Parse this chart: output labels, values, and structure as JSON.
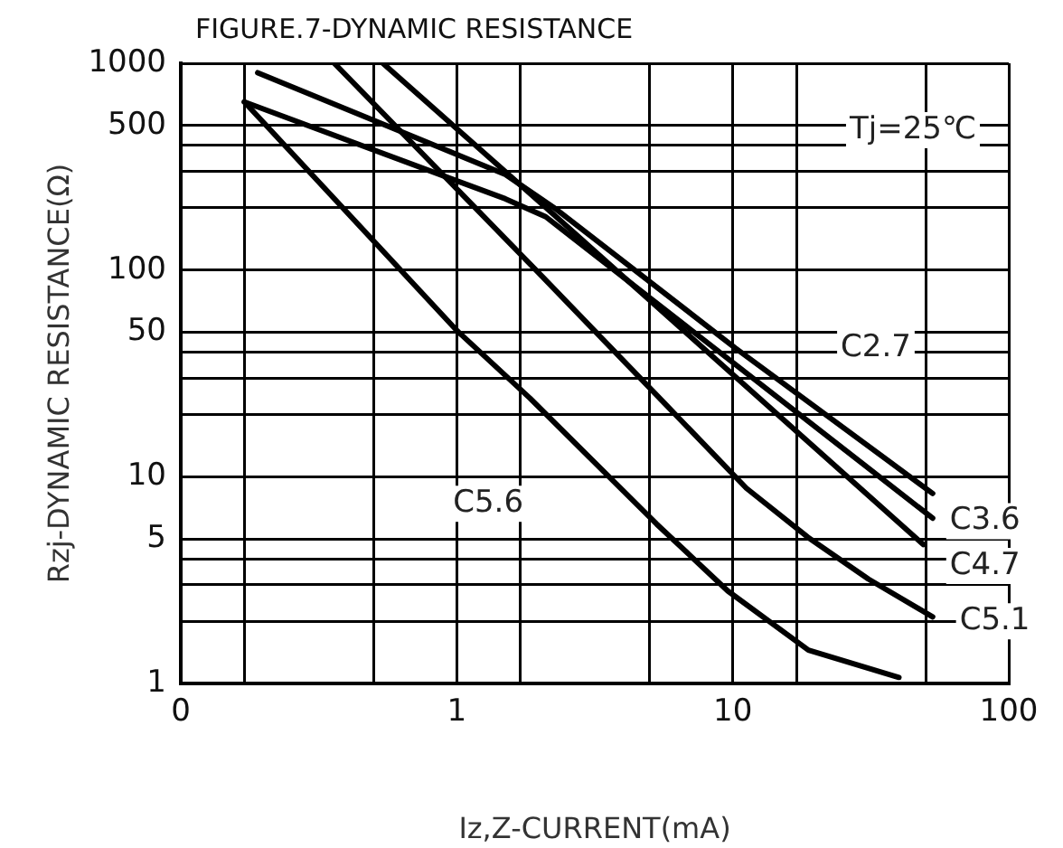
{
  "chart_data": {
    "type": "line",
    "title": "FIGURE.7-DYNAMIC RESISTANCE",
    "xlabel": "Iz,Z-CURRENT(mA)",
    "ylabel": "Rzj-DYNAMIC RESISTANCE(Ω)",
    "log": "xy",
    "xlim": [
      0.1,
      100
    ],
    "ylim": [
      1,
      1000
    ],
    "xticks": [
      {
        "value": 0.1,
        "label": "0"
      },
      {
        "value": 0.17,
        "label": null
      },
      {
        "value": 0.5,
        "label": null
      },
      1,
      {
        "value": 1.7,
        "label": null
      },
      {
        "value": 5,
        "label": null
      },
      10,
      {
        "value": 17,
        "label": null
      },
      {
        "value": 50,
        "label": null
      },
      100
    ],
    "yticks": [
      1,
      {
        "value": 2,
        "label": null
      },
      {
        "value": 3,
        "label": null
      },
      {
        "value": 4,
        "label": null
      },
      5,
      10,
      {
        "value": 20,
        "label": null
      },
      {
        "value": 30,
        "label": null
      },
      {
        "value": 40,
        "label": null
      },
      50,
      100,
      {
        "value": 200,
        "label": null
      },
      {
        "value": 300,
        "label": null
      },
      {
        "value": 400,
        "label": null
      },
      500,
      1000
    ],
    "grid": true,
    "legend": false,
    "marker": "none",
    "line_style": "solid",
    "series": [
      {
        "color": "#000000",
        "x": [
          0.19,
          1.5,
          2.3,
          10.2,
          53
        ],
        "values": [
          900,
          290,
          196,
          42,
          8.3
        ]
      },
      {
        "color": "#000000",
        "x": [
          0.17,
          1.5,
          2.1,
          53
        ],
        "values": [
          650,
          221,
          181,
          6.3
        ]
      },
      {
        "color": "#000000",
        "x": [
          0.54,
          2.04,
          49
        ],
        "values": [
          1000,
          208,
          4.7
        ]
      },
      {
        "color": "#000000",
        "x": [
          0.36,
          2.04,
          5.6,
          11.2,
          18.7,
          31,
          53
        ],
        "values": [
          1000,
          93,
          23,
          8.8,
          5.1,
          3.2,
          2.1
        ]
      },
      {
        "color": "#000000",
        "x": [
          0.17,
          1,
          1.84,
          5.3,
          9.6,
          18.8,
          40
        ],
        "values": [
          650,
          51,
          24,
          5.9,
          2.8,
          1.45,
          1.07
        ]
      }
    ],
    "annotations": [
      "Tj=25℃",
      {
        "text": "C2.7",
        "x": 33,
        "y": 42
      },
      {
        "text": "C3.6",
        "x": 82,
        "y": 6.1
      },
      {
        "text": "C4.7",
        "x": 82,
        "y": 3.7
      },
      {
        "text": "C5.1",
        "x": 89,
        "y": 2.0
      },
      {
        "text": "C5.6",
        "x": 1.3,
        "y": 7.4
      }
    ]
  }
}
